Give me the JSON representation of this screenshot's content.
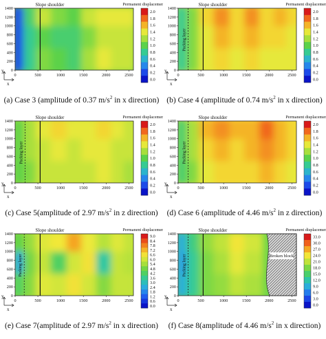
{
  "figure": {
    "panels": [
      {
        "id": "a",
        "caption": {
          "pre": "(a) Case 3 (amplitude of 0.37 m/s",
          "sup": "2",
          "post": " in x direction)"
        },
        "colorbar_title": "Permanent displacement/mm",
        "colorbar_ticks": [
          "2.0",
          "1.8",
          "1.6",
          "1.4",
          "1.2",
          "1.0",
          "0.8",
          "0.6",
          "0.4",
          "0.2",
          "0.0"
        ],
        "vmax": 2.0,
        "annotations": {
          "slope_shoulder": "Slope shoulder",
          "packing_layer": "",
          "broken_block": ""
        },
        "axes": {
          "x_label": "x",
          "y_label": "y",
          "x_ticks": [
            "0",
            "500",
            "1000",
            "1500",
            "2000",
            "2500"
          ],
          "y_ticks": [
            "1400",
            "1200",
            "1000",
            "800",
            "600",
            "400",
            "200",
            "0"
          ]
        }
      },
      {
        "id": "b",
        "caption": {
          "pre": "(b) Case 4 (amplitude of 0.74 m/s",
          "sup": "2",
          "post": " in x direction)"
        },
        "colorbar_title": "Permanent displacement/mm",
        "colorbar_ticks": [
          "2.0",
          "1.8",
          "1.6",
          "1.4",
          "1.2",
          "1.0",
          "0.8",
          "0.6",
          "0.4",
          "0.2",
          "0.0"
        ],
        "vmax": 2.0,
        "annotations": {
          "slope_shoulder": "Slope shoulder",
          "packing_layer": "Packing layer",
          "broken_block": ""
        },
        "axes": {
          "x_label": "x",
          "y_label": "y",
          "x_ticks": [
            "0",
            "500",
            "1000",
            "1500",
            "2000",
            "2500"
          ],
          "y_ticks": [
            "1400",
            "1200",
            "1000",
            "800",
            "600",
            "400",
            "200",
            "0"
          ]
        }
      },
      {
        "id": "c",
        "caption": {
          "pre": "(c) Case 5(amplitude of 2.97 m/s",
          "sup": "2",
          "post": " in z direction)"
        },
        "colorbar_title": "Permanent displacement/mm",
        "colorbar_ticks": [
          "2.0",
          "1.8",
          "1.6",
          "1.4",
          "1.2",
          "1.0",
          "0.8",
          "0.6",
          "0.4",
          "0.2",
          "0.0"
        ],
        "vmax": 2.0,
        "annotations": {
          "slope_shoulder": "Slope shoulder",
          "packing_layer": "Packing layer",
          "broken_block": ""
        },
        "axes": {
          "x_label": "x",
          "y_label": "y",
          "x_ticks": [
            "0",
            "500",
            "1000",
            "1500",
            "2000",
            "2500"
          ],
          "y_ticks": [
            "1400",
            "1200",
            "1000",
            "800",
            "600",
            "400",
            "200",
            "0"
          ]
        }
      },
      {
        "id": "d",
        "caption": {
          "pre": "(d) Case 6 (amplitude of 4.46 m/s",
          "sup": "2",
          "post": " in z direction)"
        },
        "colorbar_title": "Permanent displacement/mm",
        "colorbar_ticks": [
          "2.0",
          "1.8",
          "1.6",
          "1.4",
          "1.2",
          "1.0",
          "0.8",
          "0.6",
          "0.4",
          "0.2",
          "0.0"
        ],
        "vmax": 2.0,
        "annotations": {
          "slope_shoulder": "Slope shoulder",
          "packing_layer": "Packing layer",
          "broken_block": ""
        },
        "axes": {
          "x_label": "x",
          "y_label": "y",
          "x_ticks": [
            "0",
            "500",
            "1000",
            "1500",
            "2000",
            "2500"
          ],
          "y_ticks": [
            "1400",
            "1200",
            "1000",
            "800",
            "600",
            "400",
            "200",
            "0"
          ]
        }
      },
      {
        "id": "e",
        "caption": {
          "pre": "(e) Case 7(amplitude of 2.97 m/s",
          "sup": "2",
          "post": " in x direction)"
        },
        "colorbar_title": "Permanent displacement/mm",
        "colorbar_ticks": [
          "9.0",
          "8.4",
          "7.8",
          "7.2",
          "6.6",
          "6.0",
          "5.4",
          "4.8",
          "4.2",
          "3.6",
          "3.0",
          "2.4",
          "1.8",
          "1.2",
          "0.6",
          "0.0"
        ],
        "vmax": 9.0,
        "annotations": {
          "slope_shoulder": "Slope shoulder",
          "packing_layer": "Packing layer",
          "broken_block": ""
        },
        "axes": {
          "x_label": "x",
          "y_label": "y",
          "x_ticks": [
            "0",
            "500",
            "1000",
            "1500",
            "2000",
            "2500"
          ],
          "y_ticks": [
            "1400",
            "1200",
            "1000",
            "800",
            "600",
            "400",
            "200",
            "0"
          ]
        }
      },
      {
        "id": "f",
        "caption": {
          "pre": "(f) Case 8(amplitude of 4.46 m/s",
          "sup": "2",
          "post": " in x direction)"
        },
        "colorbar_title": "Permanent displacement/mm",
        "colorbar_ticks": [
          "33.0",
          "30.0",
          "27.0",
          "24.0",
          "21.0",
          "18.0",
          "15.0",
          "12.0",
          "9.0",
          "6.0",
          "3.0",
          "0.0"
        ],
        "vmax": 33.0,
        "annotations": {
          "slope_shoulder": "Slope shoulder",
          "packing_layer": "Packing layer",
          "broken_block": "Broken block"
        },
        "axes": {
          "x_label": "x",
          "y_label": "y",
          "x_ticks": [
            "0",
            "500",
            "1000",
            "1500",
            "2000",
            "2500"
          ],
          "y_ticks": [
            "1400",
            "1200",
            "1000",
            "800",
            "600",
            "400",
            "200",
            "0"
          ]
        }
      }
    ]
  },
  "chart_data": [
    {
      "type": "heatmap",
      "panel": "a",
      "colorbar_label": "Permanent displacement/mm",
      "zlim": [
        0,
        2.0
      ],
      "x_range": [
        0,
        2600
      ],
      "y_range": [
        0,
        1400
      ],
      "column_x": [
        100,
        350,
        650,
        1000,
        1350,
        1650,
        2000,
        2300,
        2550
      ],
      "row_y": [
        1200,
        700,
        200
      ],
      "values": [
        [
          0.2,
          0.9,
          1.3,
          1.1,
          1.0,
          1.3,
          1.4,
          1.4,
          1.4
        ],
        [
          0.2,
          0.8,
          1.0,
          0.9,
          0.9,
          1.1,
          1.3,
          1.3,
          1.3
        ],
        [
          0.2,
          0.8,
          1.1,
          1.0,
          0.9,
          1.2,
          1.4,
          1.3,
          1.3
        ]
      ],
      "slope_shoulder_x": 550
    },
    {
      "type": "heatmap",
      "panel": "b",
      "colorbar_label": "Permanent displacement/mm",
      "zlim": [
        0,
        2.0
      ],
      "x_range": [
        0,
        2600
      ],
      "y_range": [
        0,
        1400
      ],
      "column_x": [
        100,
        350,
        650,
        1000,
        1350,
        1650,
        2000,
        2300,
        2550
      ],
      "row_y": [
        1200,
        700,
        200
      ],
      "values": [
        [
          0.8,
          1.1,
          1.5,
          1.7,
          1.5,
          1.7,
          1.5,
          1.6,
          1.5
        ],
        [
          0.8,
          1.1,
          1.4,
          1.6,
          1.5,
          1.6,
          1.5,
          1.5,
          1.4
        ],
        [
          0.8,
          1.1,
          1.4,
          1.5,
          1.4,
          1.5,
          1.4,
          1.4,
          1.4
        ]
      ],
      "slope_shoulder_x": 550,
      "packing_layer_x": 220
    },
    {
      "type": "heatmap",
      "panel": "c",
      "colorbar_label": "Permanent displacement/mm",
      "zlim": [
        0,
        2.0
      ],
      "x_range": [
        0,
        2600
      ],
      "y_range": [
        0,
        1400
      ],
      "column_x": [
        100,
        350,
        650,
        1000,
        1350,
        1650,
        2000,
        2300,
        2550
      ],
      "row_y": [
        1200,
        700,
        200
      ],
      "values": [
        [
          1.0,
          1.2,
          1.4,
          1.5,
          1.4,
          1.4,
          1.5,
          1.4,
          1.3
        ],
        [
          1.0,
          1.2,
          1.3,
          1.4,
          1.3,
          1.4,
          1.4,
          1.3,
          1.3
        ],
        [
          1.0,
          1.1,
          1.3,
          1.3,
          1.3,
          1.3,
          1.4,
          1.3,
          1.2
        ]
      ],
      "slope_shoulder_x": 550,
      "packing_layer_x": 220
    },
    {
      "type": "heatmap",
      "panel": "d",
      "colorbar_label": "Permanent displacement/mm",
      "zlim": [
        0,
        2.0
      ],
      "x_range": [
        0,
        2600
      ],
      "y_range": [
        0,
        1400
      ],
      "column_x": [
        100,
        350,
        650,
        1000,
        1350,
        1650,
        2000,
        2300,
        2550
      ],
      "row_y": [
        1200,
        700,
        200
      ],
      "values": [
        [
          0.9,
          1.2,
          1.6,
          1.7,
          1.6,
          1.6,
          1.8,
          1.6,
          1.5
        ],
        [
          0.9,
          1.2,
          1.5,
          1.6,
          1.5,
          1.6,
          1.7,
          1.6,
          1.5
        ],
        [
          0.9,
          1.1,
          1.4,
          1.5,
          1.5,
          1.5,
          1.6,
          1.5,
          1.4
        ]
      ],
      "slope_shoulder_x": 550,
      "packing_layer_x": 220
    },
    {
      "type": "heatmap",
      "panel": "e",
      "colorbar_label": "Permanent displacement/mm",
      "zlim": [
        0,
        9.0
      ],
      "x_range": [
        0,
        2600
      ],
      "y_range": [
        0,
        1400
      ],
      "column_x": [
        100,
        350,
        650,
        1000,
        1350,
        1650,
        2000,
        2300,
        2550
      ],
      "row_y": [
        1200,
        700,
        200
      ],
      "values": [
        [
          4.5,
          5.2,
          6.2,
          6.5,
          7.4,
          6.4,
          5.6,
          6.2,
          5.8
        ],
        [
          2.5,
          4.8,
          5.8,
          4.2,
          6.0,
          6.6,
          3.4,
          5.8,
          5.6
        ],
        [
          4.2,
          5.0,
          6.2,
          6.0,
          6.6,
          6.0,
          5.0,
          5.8,
          5.8
        ]
      ],
      "slope_shoulder_x": 550,
      "packing_layer_x": 200
    },
    {
      "type": "heatmap",
      "panel": "f",
      "colorbar_label": "Permanent displacement/mm",
      "zlim": [
        0,
        33.0
      ],
      "x_range": [
        0,
        2600
      ],
      "y_range": [
        0,
        1400
      ],
      "column_x": [
        100,
        350,
        650,
        1000,
        1350,
        1650,
        2000,
        2300,
        2550
      ],
      "row_y": [
        1200,
        700,
        200
      ],
      "values": [
        [
          9.0,
          14.0,
          19.0,
          21.0,
          24.0,
          22.0,
          null,
          null,
          null
        ],
        [
          8.0,
          13.0,
          18.0,
          20.0,
          23.0,
          21.0,
          null,
          null,
          null
        ],
        [
          9.0,
          13.0,
          18.0,
          19.0,
          21.0,
          20.0,
          null,
          null,
          null
        ]
      ],
      "slope_shoulder_x": 550,
      "packing_layer_x": 220,
      "broken_block_from_x": 1950
    }
  ]
}
